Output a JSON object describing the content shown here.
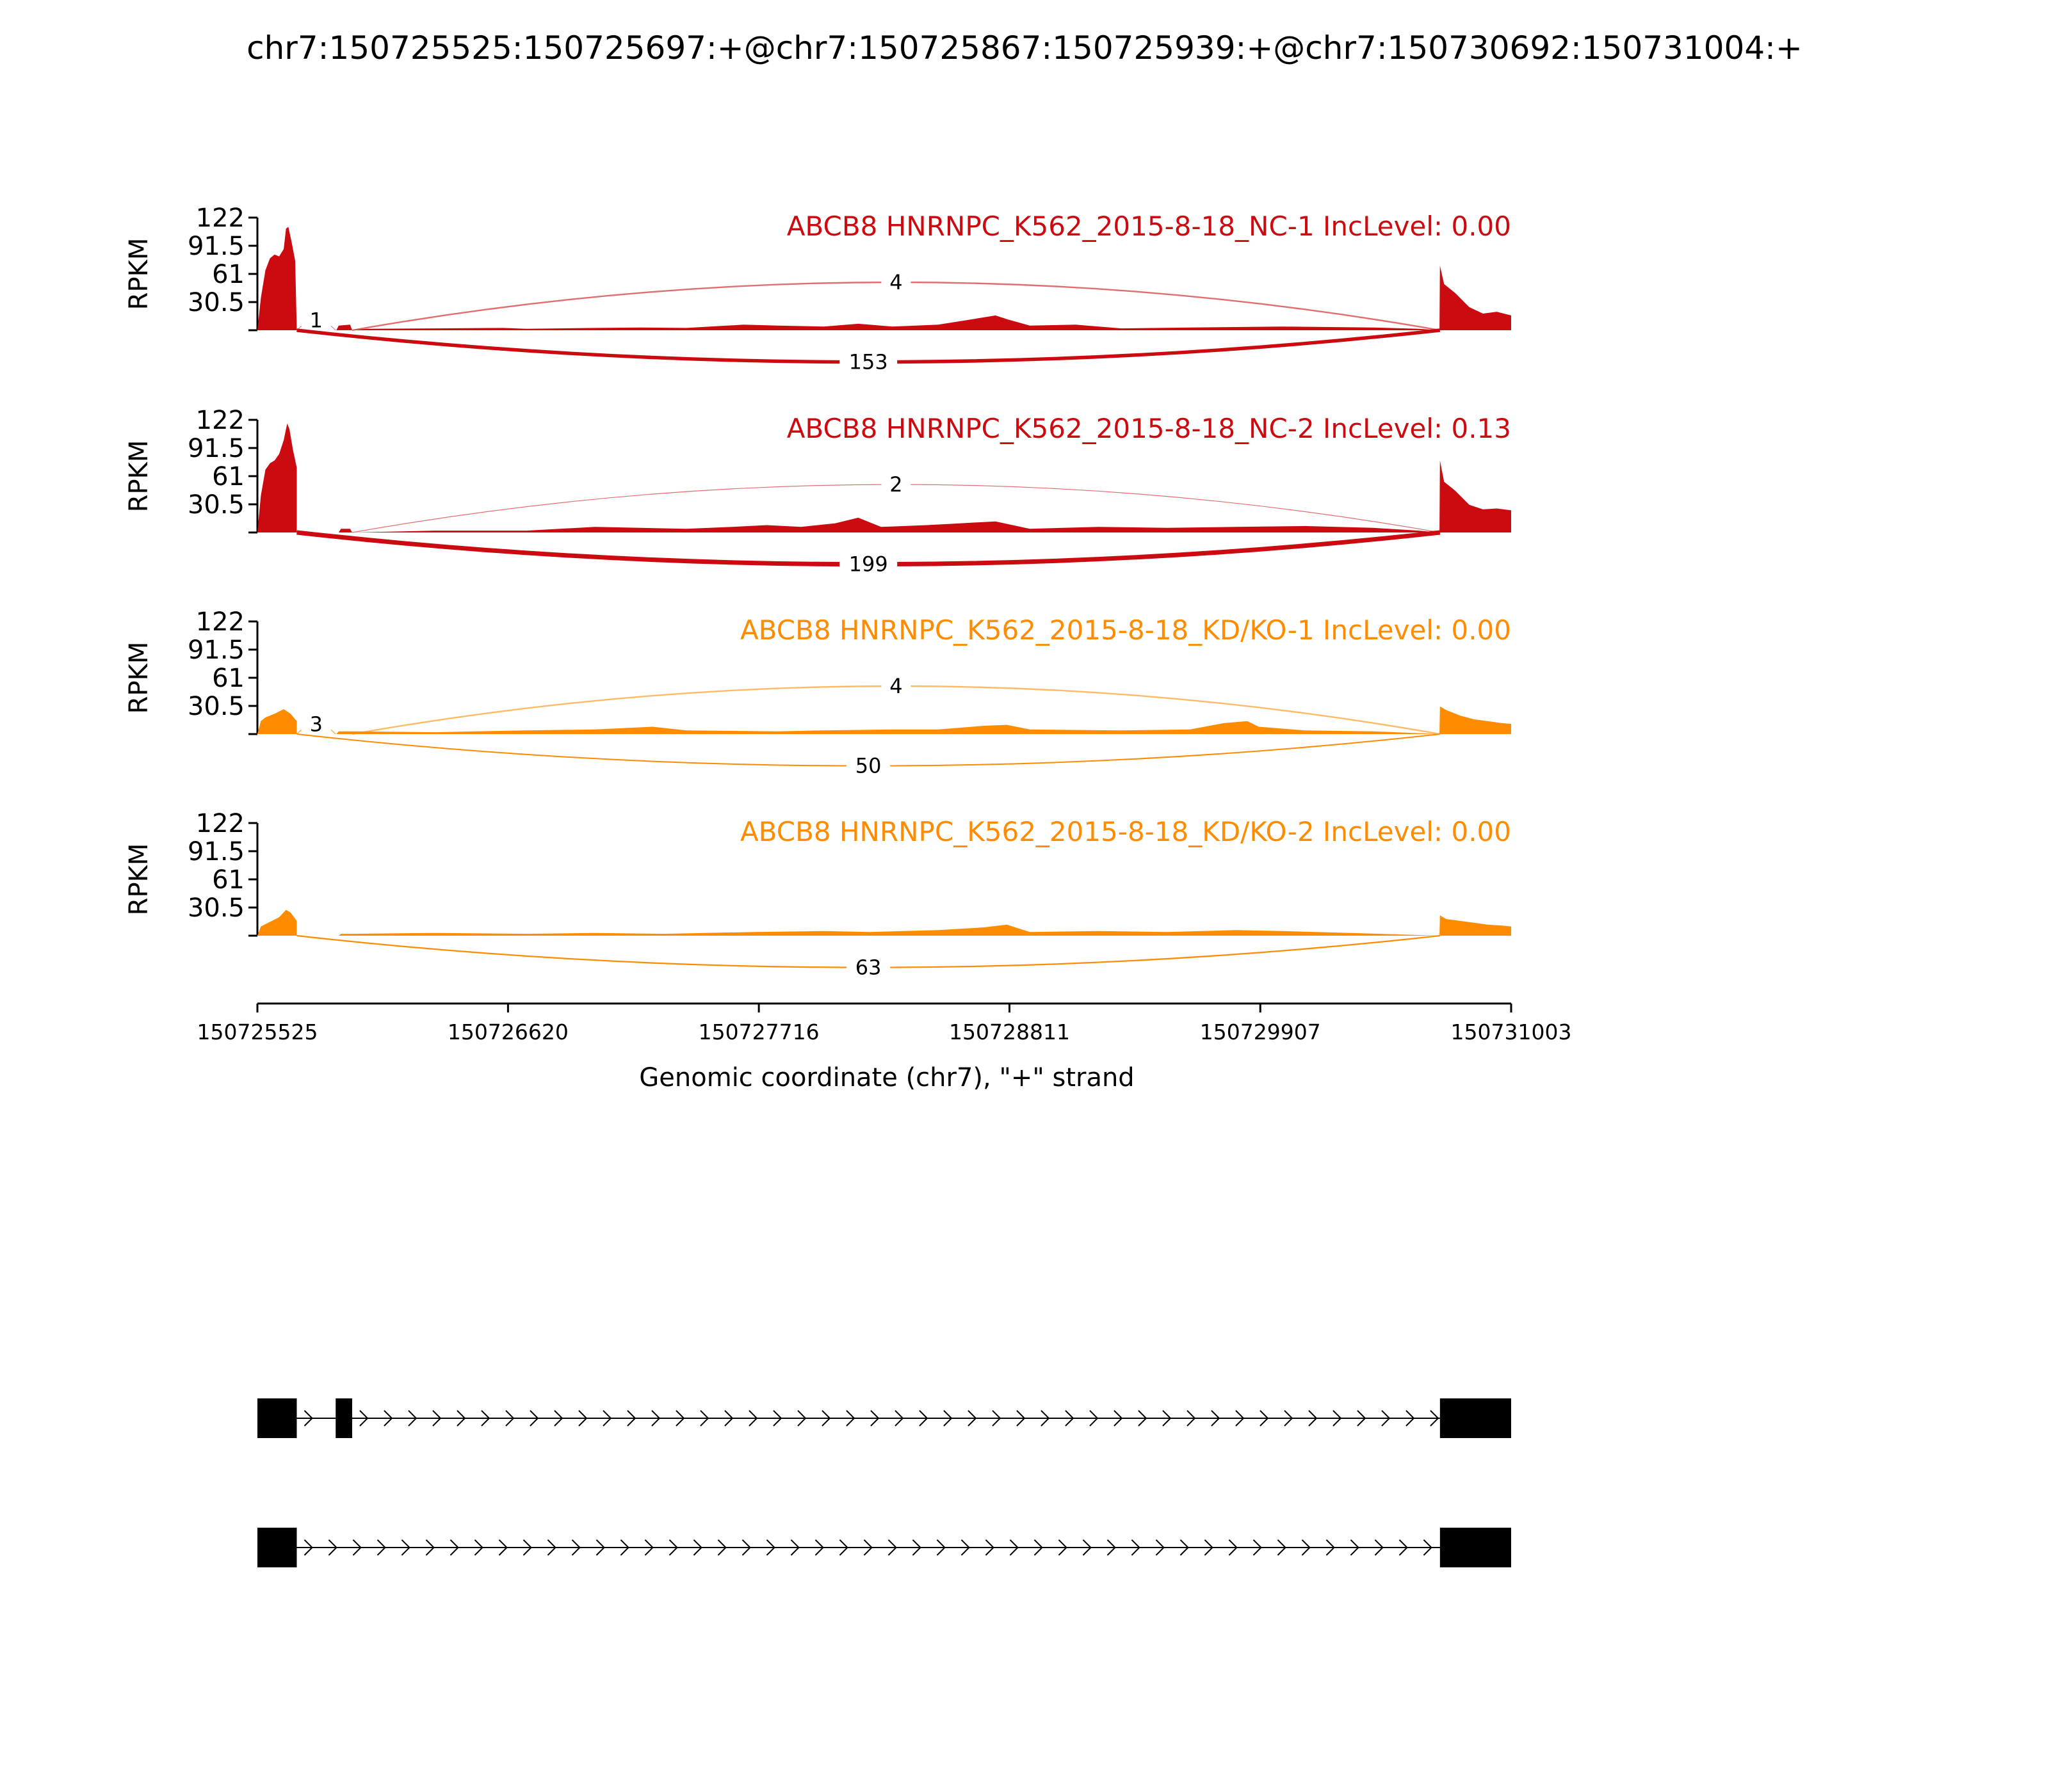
{
  "chart_data": {
    "type": "area",
    "title": "chr7:150725525:150725697:+@chr7:150725867:150725939:+@chr7:150730692:150731004:+",
    "ylabel": "RPKM",
    "xlabel": "Genomic coordinate (chr7), \"+\" strand",
    "xlim": [
      150725525,
      150731003
    ],
    "ylim": [
      0,
      122
    ],
    "x_ticks": [
      "150725525",
      "150726620",
      "150727716",
      "150728811",
      "150729907",
      "150731003"
    ],
    "x_tick_values": [
      150725525,
      150726620,
      150727716,
      150728811,
      150729907,
      150731003
    ],
    "y_ticks": [
      "122",
      "91.5",
      "61",
      "30.5"
    ],
    "y_tick_values": [
      122,
      91.5,
      61,
      30.5
    ],
    "colors": {
      "nc": "#cc0b11",
      "kd": "#ff8c00",
      "text": "#000000"
    },
    "exons": [
      {
        "start": 150725525,
        "end": 150725697
      },
      {
        "start": 150725867,
        "end": 150725939
      },
      {
        "start": 150730692,
        "end": 150731004
      }
    ],
    "isoforms": [
      {
        "exons": [
          0,
          1,
          2
        ]
      },
      {
        "exons": [
          0,
          2
        ]
      }
    ],
    "samples": [
      {
        "label": "ABCB8 HNRNPC_K562_2015-8-18_NC-1 IncLevel: 0.00",
        "group": "nc",
        "coverage": [
          [
            150725525,
            0
          ],
          [
            150725540,
            35
          ],
          [
            150725560,
            65
          ],
          [
            150725580,
            78
          ],
          [
            150725600,
            82
          ],
          [
            150725620,
            80
          ],
          [
            150725640,
            88
          ],
          [
            150725650,
            110
          ],
          [
            150725660,
            112
          ],
          [
            150725675,
            95
          ],
          [
            150725690,
            75
          ],
          [
            150725697,
            0
          ],
          [
            150725870,
            0
          ],
          [
            150725880,
            5
          ],
          [
            150725930,
            6
          ],
          [
            150725939,
            0
          ],
          [
            150726000,
            1.5
          ],
          [
            150726300,
            2
          ],
          [
            150726600,
            2.5
          ],
          [
            150726700,
            1.5
          ],
          [
            150727000,
            2.5
          ],
          [
            150727200,
            3
          ],
          [
            150727400,
            2.5
          ],
          [
            150727650,
            6
          ],
          [
            150727800,
            5
          ],
          [
            150728000,
            4
          ],
          [
            150728150,
            7
          ],
          [
            150728300,
            4
          ],
          [
            150728500,
            6
          ],
          [
            150728650,
            12
          ],
          [
            150728750,
            16
          ],
          [
            150728800,
            12
          ],
          [
            150728900,
            5
          ],
          [
            150729100,
            6
          ],
          [
            150729300,
            2
          ],
          [
            150729600,
            3
          ],
          [
            150730000,
            4
          ],
          [
            150730400,
            3
          ],
          [
            150730600,
            1.5
          ],
          [
            150730690,
            0
          ],
          [
            150730692,
            70
          ],
          [
            150730710,
            50
          ],
          [
            150730760,
            40
          ],
          [
            150730820,
            25
          ],
          [
            150730880,
            18
          ],
          [
            150730940,
            20
          ],
          [
            150731003,
            16
          ]
        ]
      },
      {
        "label": "ABCB8 HNRNPC_K562_2015-8-18_NC-2 IncLevel: 0.13",
        "group": "nc",
        "coverage": [
          [
            150725525,
            0
          ],
          [
            150725540,
            40
          ],
          [
            150725560,
            68
          ],
          [
            150725580,
            75
          ],
          [
            150725600,
            78
          ],
          [
            150725620,
            85
          ],
          [
            150725640,
            100
          ],
          [
            150725655,
            118
          ],
          [
            150725665,
            112
          ],
          [
            150725680,
            90
          ],
          [
            150725697,
            70
          ],
          [
            150725697,
            0
          ],
          [
            150725880,
            0
          ],
          [
            150725890,
            4
          ],
          [
            150725930,
            4
          ],
          [
            150725939,
            0
          ],
          [
            150726300,
            2
          ],
          [
            150726700,
            2
          ],
          [
            150727000,
            6
          ],
          [
            150727200,
            5
          ],
          [
            150727400,
            4
          ],
          [
            150727600,
            6
          ],
          [
            150727750,
            8
          ],
          [
            150727900,
            6
          ],
          [
            150728050,
            10
          ],
          [
            150728150,
            16
          ],
          [
            150728250,
            6
          ],
          [
            150728450,
            8
          ],
          [
            150728600,
            10
          ],
          [
            150728750,
            12
          ],
          [
            150728900,
            4
          ],
          [
            150729200,
            6
          ],
          [
            150729500,
            5
          ],
          [
            150729800,
            6
          ],
          [
            150730100,
            7
          ],
          [
            150730400,
            5
          ],
          [
            150730600,
            2
          ],
          [
            150730690,
            0
          ],
          [
            150730692,
            78
          ],
          [
            150730710,
            55
          ],
          [
            150730760,
            45
          ],
          [
            150730820,
            30
          ],
          [
            150730880,
            25
          ],
          [
            150730940,
            26
          ],
          [
            150731003,
            24
          ]
        ]
      },
      {
        "label": "ABCB8 HNRNPC_K562_2015-8-18_KD/KO-1 IncLevel: 0.00",
        "group": "kd",
        "coverage": [
          [
            150725525,
            0
          ],
          [
            150725540,
            14
          ],
          [
            150725560,
            18
          ],
          [
            150725600,
            22
          ],
          [
            150725640,
            27
          ],
          [
            150725670,
            22
          ],
          [
            150725697,
            14
          ],
          [
            150725697,
            0
          ],
          [
            150725870,
            0
          ],
          [
            150725880,
            3
          ],
          [
            150725939,
            3
          ],
          [
            150726300,
            2
          ],
          [
            150726700,
            4
          ],
          [
            150727000,
            5
          ],
          [
            150727250,
            8
          ],
          [
            150727400,
            4
          ],
          [
            150727800,
            3
          ],
          [
            150728000,
            4
          ],
          [
            150728300,
            5
          ],
          [
            150728500,
            5
          ],
          [
            150728700,
            9
          ],
          [
            150728800,
            10
          ],
          [
            150728900,
            5
          ],
          [
            150729300,
            4
          ],
          [
            150729600,
            5
          ],
          [
            150729750,
            12
          ],
          [
            150729850,
            14
          ],
          [
            150729900,
            8
          ],
          [
            150730100,
            4
          ],
          [
            150730400,
            3
          ],
          [
            150730690,
            0
          ],
          [
            150730692,
            30
          ],
          [
            150730720,
            26
          ],
          [
            150730780,
            20
          ],
          [
            150730840,
            16
          ],
          [
            150730900,
            14
          ],
          [
            150730960,
            12
          ],
          [
            150731003,
            11
          ]
        ]
      },
      {
        "label": "ABCB8 HNRNPC_K562_2015-8-18_KD/KO-2 IncLevel: 0.00",
        "group": "kd",
        "coverage": [
          [
            150725525,
            0
          ],
          [
            150725540,
            10
          ],
          [
            150725580,
            15
          ],
          [
            150725620,
            20
          ],
          [
            150725650,
            28
          ],
          [
            150725670,
            25
          ],
          [
            150725697,
            16
          ],
          [
            150725697,
            0
          ],
          [
            150725880,
            0
          ],
          [
            150725890,
            2
          ],
          [
            150725939,
            2
          ],
          [
            150726300,
            3
          ],
          [
            150726700,
            2
          ],
          [
            150727000,
            3
          ],
          [
            150727300,
            2
          ],
          [
            150727700,
            4
          ],
          [
            150728000,
            5
          ],
          [
            150728200,
            4
          ],
          [
            150728500,
            6
          ],
          [
            150728700,
            9
          ],
          [
            150728800,
            12
          ],
          [
            150728900,
            4
          ],
          [
            150729200,
            5
          ],
          [
            150729500,
            4
          ],
          [
            150729800,
            6
          ],
          [
            150730000,
            5
          ],
          [
            150730300,
            3
          ],
          [
            150730690,
            0
          ],
          [
            150730692,
            22
          ],
          [
            150730720,
            18
          ],
          [
            150730780,
            16
          ],
          [
            150730840,
            14
          ],
          [
            150730900,
            12
          ],
          [
            150730960,
            11
          ],
          [
            150731003,
            10
          ]
        ]
      }
    ],
    "junctions": [
      [
        {
          "start": 150725697,
          "end": 150725867,
          "count": "1",
          "side": "above"
        },
        {
          "start": 150725939,
          "end": 150730692,
          "count": "4",
          "side": "above"
        },
        {
          "start": 150725697,
          "end": 150730692,
          "count": "153",
          "side": "below"
        }
      ],
      [
        {
          "start": 150725939,
          "end": 150730692,
          "count": "2",
          "side": "above"
        },
        {
          "start": 150725697,
          "end": 150730692,
          "count": "199",
          "side": "below"
        }
      ],
      [
        {
          "start": 150725697,
          "end": 150725867,
          "count": "3",
          "side": "above"
        },
        {
          "start": 150725939,
          "end": 150730692,
          "count": "4",
          "side": "above"
        },
        {
          "start": 150725697,
          "end": 150730692,
          "count": "50",
          "side": "below"
        }
      ],
      [
        {
          "start": 150725697,
          "end": 150730692,
          "count": "63",
          "side": "below"
        }
      ]
    ]
  }
}
